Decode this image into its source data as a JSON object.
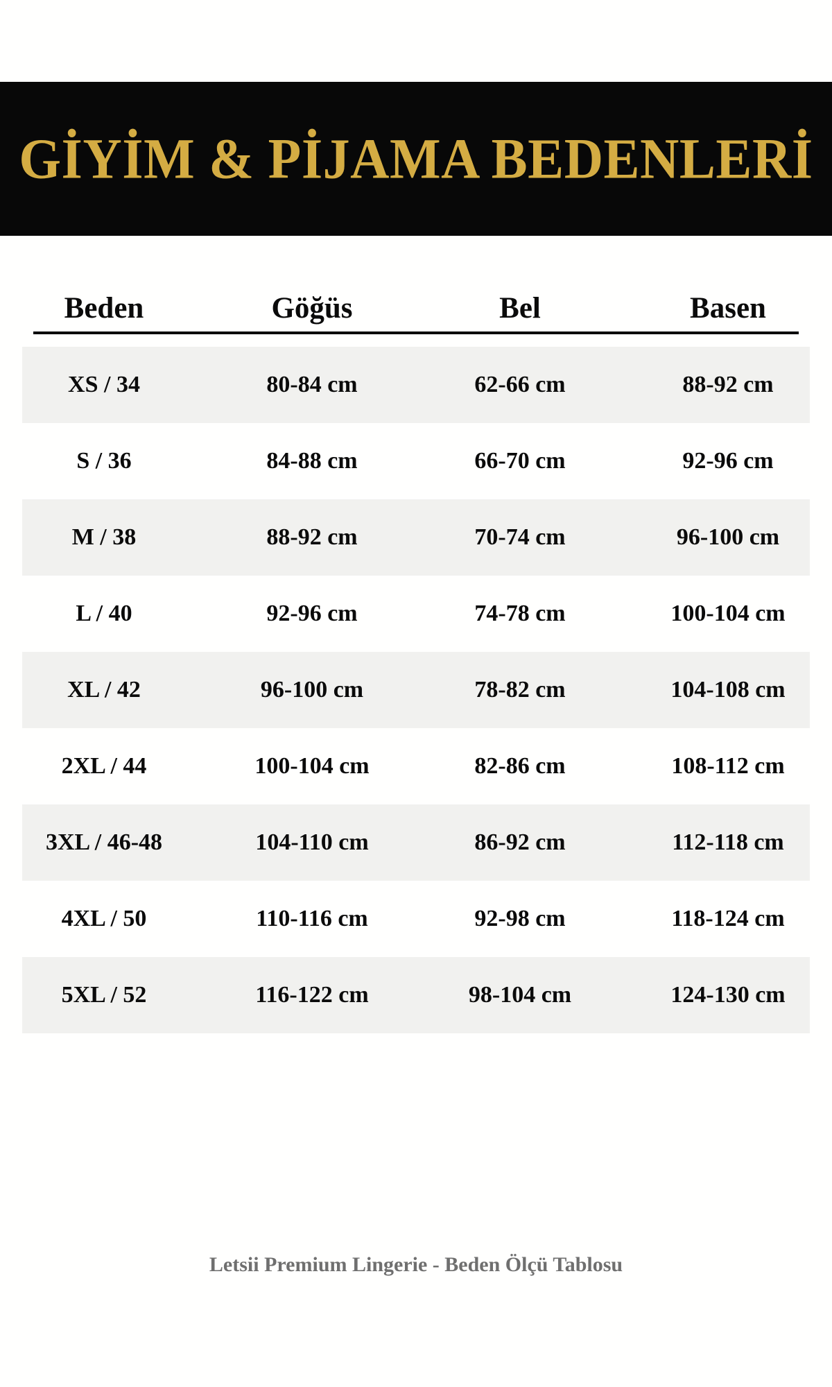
{
  "banner": {
    "title": "GİYİM & PİJAMA BEDENLERİ"
  },
  "chart_data": {
    "type": "table",
    "title": "GİYİM & PİJAMA BEDENLERİ",
    "columns": [
      "Beden",
      "Göğüs",
      "Bel",
      "Basen"
    ],
    "rows": [
      [
        "XS / 34",
        "80-84 cm",
        "62-66 cm",
        "88-92 cm"
      ],
      [
        "S / 36",
        "84-88 cm",
        "66-70 cm",
        "92-96 cm"
      ],
      [
        "M / 38",
        "88-92 cm",
        "70-74 cm",
        "96-100 cm"
      ],
      [
        "L / 40",
        "92-96 cm",
        "74-78 cm",
        "100-104 cm"
      ],
      [
        "XL / 42",
        "96-100 cm",
        "78-82 cm",
        "104-108 cm"
      ],
      [
        "2XL / 44",
        "100-104 cm",
        "82-86 cm",
        "108-112 cm"
      ],
      [
        "3XL / 46-48",
        "104-110 cm",
        "86-92 cm",
        "112-118 cm"
      ],
      [
        "4XL / 50",
        "110-116 cm",
        "92-98 cm",
        "118-124 cm"
      ],
      [
        "5XL / 52",
        "116-122 cm",
        "98-104 cm",
        "124-130 cm"
      ]
    ],
    "footer": "Letsii Premium Lingerie - Beden Ölçü Tablosu",
    "layout_hints": {
      "row_striping": "odd rows shaded",
      "header_rule": true
    }
  },
  "colors": {
    "banner_background": "#080808",
    "banner_gold": "#d4ac43",
    "stripe_gray": "#f1f1ef",
    "text_black": "#0b0b0b",
    "footer_gray": "#6f6f6f",
    "page_background": "#ffffff"
  }
}
